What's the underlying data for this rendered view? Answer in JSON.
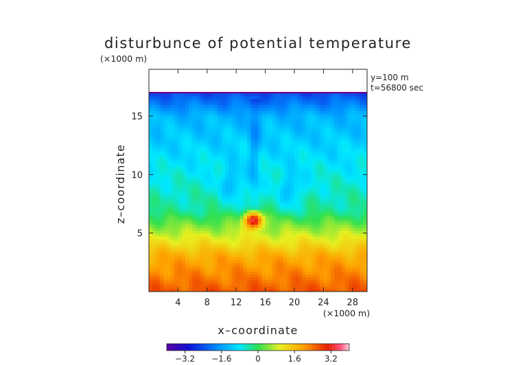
{
  "chart_data": {
    "type": "heatmap",
    "title": "disturbunce of potential temperature",
    "subtitle": "(×1000 m)",
    "xlabel": "x–coordinate",
    "ylabel": "z–coordinate",
    "x_unit": "(×1000 m)",
    "annotations": [
      "y=100 m",
      "t=56800 sec"
    ],
    "xlim": [
      0,
      30
    ],
    "ylim": [
      0,
      19
    ],
    "x_ticks": [
      4,
      8,
      12,
      16,
      20,
      24,
      28
    ],
    "x_tick_labels": [
      "4",
      "8",
      "12",
      "16",
      "20",
      "24",
      "28"
    ],
    "y_ticks": [
      5,
      10,
      15
    ],
    "y_tick_labels": [
      "5",
      "10",
      "15"
    ],
    "field_top": 17,
    "grid": false,
    "colorbar": {
      "range": [
        -4,
        4
      ],
      "ticks": [
        -3.2,
        -1.6,
        0,
        1.6,
        3.2
      ],
      "tick_labels": [
        "−3.2",
        "−1.6",
        "0",
        "1.6",
        "3.2"
      ],
      "colormap": "rainbow"
    },
    "features": [
      {
        "kind": "warm_bubble",
        "x": 14.4,
        "z": 6.1,
        "value": 3.4
      },
      {
        "kind": "cold_plume",
        "x": 14.5,
        "z": 13.5,
        "value": -1.1
      },
      {
        "kind": "cold_lobe",
        "x": 11.5,
        "z": 9.2,
        "value": -1.3
      },
      {
        "kind": "cold_lobe",
        "x": 19.5,
        "z": 8.7,
        "value": -1.2
      }
    ],
    "colors": {
      "axis": "#222222",
      "warm": "#c81e00",
      "cold": "#1a30d8",
      "top_edge": "#6a008e"
    }
  }
}
